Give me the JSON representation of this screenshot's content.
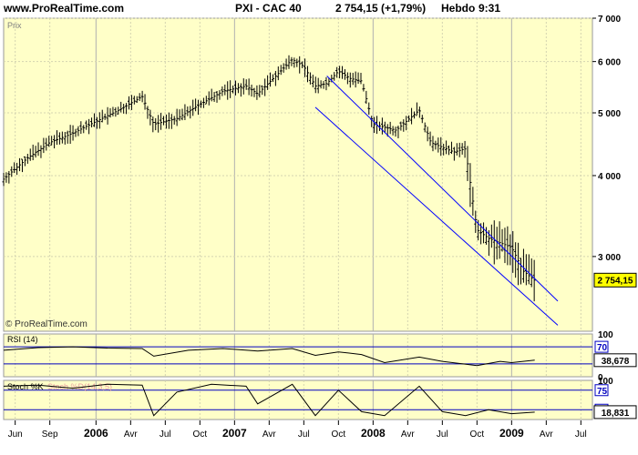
{
  "header": {
    "site": "www.ProRealTime.com",
    "instrument": "PXI - CAC 40",
    "price": "2 754,15 (+1,79%)",
    "period": "Hebdo",
    "time": "9:31"
  },
  "chart_data": [
    {
      "type": "line",
      "panel": "price",
      "series_kind": "bar (OHLC), weekly",
      "title": "Prix",
      "watermark": "© ProRealTime.com",
      "y_scale": "log",
      "ylim": [
        2300,
        7000
      ],
      "y_ticks": [
        {
          "label": "7 000",
          "value": 7000
        },
        {
          "label": "6 000",
          "value": 6000
        },
        {
          "label": "5 000",
          "value": 5000
        },
        {
          "label": "4 000",
          "value": 4000
        },
        {
          "label": "3 000",
          "value": 3000
        }
      ],
      "last_price_label": "2 754,15",
      "last_price": 2754.15,
      "x_ticks": [
        "Jun",
        "Sep",
        "2006",
        "Avr",
        "Jul",
        "Oct",
        "2007",
        "Avr",
        "Jul",
        "Oct",
        "2008",
        "Avr",
        "Jul",
        "Oct",
        "2009",
        "Avr",
        "Jul"
      ],
      "x_range": [
        "2005-05",
        "2009-08"
      ],
      "series": [
        {
          "x": [
            "2005-05",
            "2005-07",
            "2005-09",
            "2005-11",
            "2006-01",
            "2006-03",
            "2006-05",
            "2006-06",
            "2006-08",
            "2006-10",
            "2006-12",
            "2007-02",
            "2007-03",
            "2007-05",
            "2007-06",
            "2007-07",
            "2007-08",
            "2007-09",
            "2007-10",
            "2007-11",
            "2007-12",
            "2008-01",
            "2008-03",
            "2008-05",
            "2008-06",
            "2008-08",
            "2008-09",
            "2008-10",
            "2008-11",
            "2008-12",
            "2009-01",
            "2009-02",
            "2009-03"
          ],
          "values": [
            3950,
            4250,
            4500,
            4650,
            4850,
            5050,
            5300,
            4800,
            4900,
            5150,
            5400,
            5500,
            5350,
            5800,
            6050,
            5900,
            5500,
            5550,
            5800,
            5650,
            5600,
            4800,
            4700,
            5050,
            4500,
            4350,
            4400,
            3300,
            3200,
            3150,
            3100,
            2850,
            2754
          ]
        }
      ],
      "trend_lines": [
        {
          "from": {
            "x": "2007-08",
            "y": 5100
          },
          "to": {
            "x": "2009-05",
            "y": 2350
          }
        },
        {
          "from": {
            "x": "2007-09",
            "y": 5700
          },
          "to": {
            "x": "2009-05",
            "y": 2560
          }
        }
      ]
    },
    {
      "type": "line",
      "panel": "rsi",
      "title": "RSI (14)",
      "ylim": [
        0,
        100
      ],
      "y_ticks": [
        {
          "label": "100",
          "value": 100
        },
        {
          "label": "70",
          "value": 70
        },
        {
          "label": "0",
          "value": 0
        }
      ],
      "bands": [
        70,
        30
      ],
      "last_value_label": "38,678",
      "last_value": 38.678,
      "series": [
        {
          "x": [
            "2005-05",
            "2005-08",
            "2005-11",
            "2006-02",
            "2006-05",
            "2006-06",
            "2006-09",
            "2006-12",
            "2007-03",
            "2007-06",
            "2007-08",
            "2007-10",
            "2007-12",
            "2008-02",
            "2008-05",
            "2008-07",
            "2008-10",
            "2008-12",
            "2009-01",
            "2009-03"
          ],
          "values": [
            62,
            68,
            70,
            67,
            66,
            48,
            62,
            66,
            60,
            66,
            50,
            58,
            52,
            33,
            46,
            36,
            26,
            36,
            33,
            38.678
          ]
        }
      ]
    },
    {
      "type": "line",
      "panel": "stochastic",
      "title": "Stoch %K",
      "legend_overlay": "Stoch %D(14,3,5)",
      "ylim": [
        0,
        100
      ],
      "y_ticks": [
        {
          "label": "100",
          "value": 100
        },
        {
          "label": "75",
          "value": 75
        },
        {
          "label": "25",
          "value": 25
        }
      ],
      "bands": [
        75,
        25
      ],
      "last_value_label": "18,831",
      "last_value": 18.831,
      "series": [
        {
          "name": "Stoch %K",
          "x": [
            "2005-05",
            "2005-08",
            "2005-11",
            "2006-02",
            "2006-05",
            "2006-06",
            "2006-08",
            "2006-11",
            "2007-02",
            "2007-03",
            "2007-06",
            "2007-08",
            "2007-10",
            "2007-12",
            "2008-02",
            "2008-05",
            "2008-07",
            "2008-09",
            "2008-11",
            "2009-01",
            "2009-03"
          ],
          "values": [
            85,
            88,
            80,
            90,
            88,
            10,
            70,
            90,
            85,
            40,
            90,
            10,
            75,
            20,
            10,
            85,
            20,
            10,
            25,
            15,
            18.831
          ]
        }
      ]
    }
  ]
}
